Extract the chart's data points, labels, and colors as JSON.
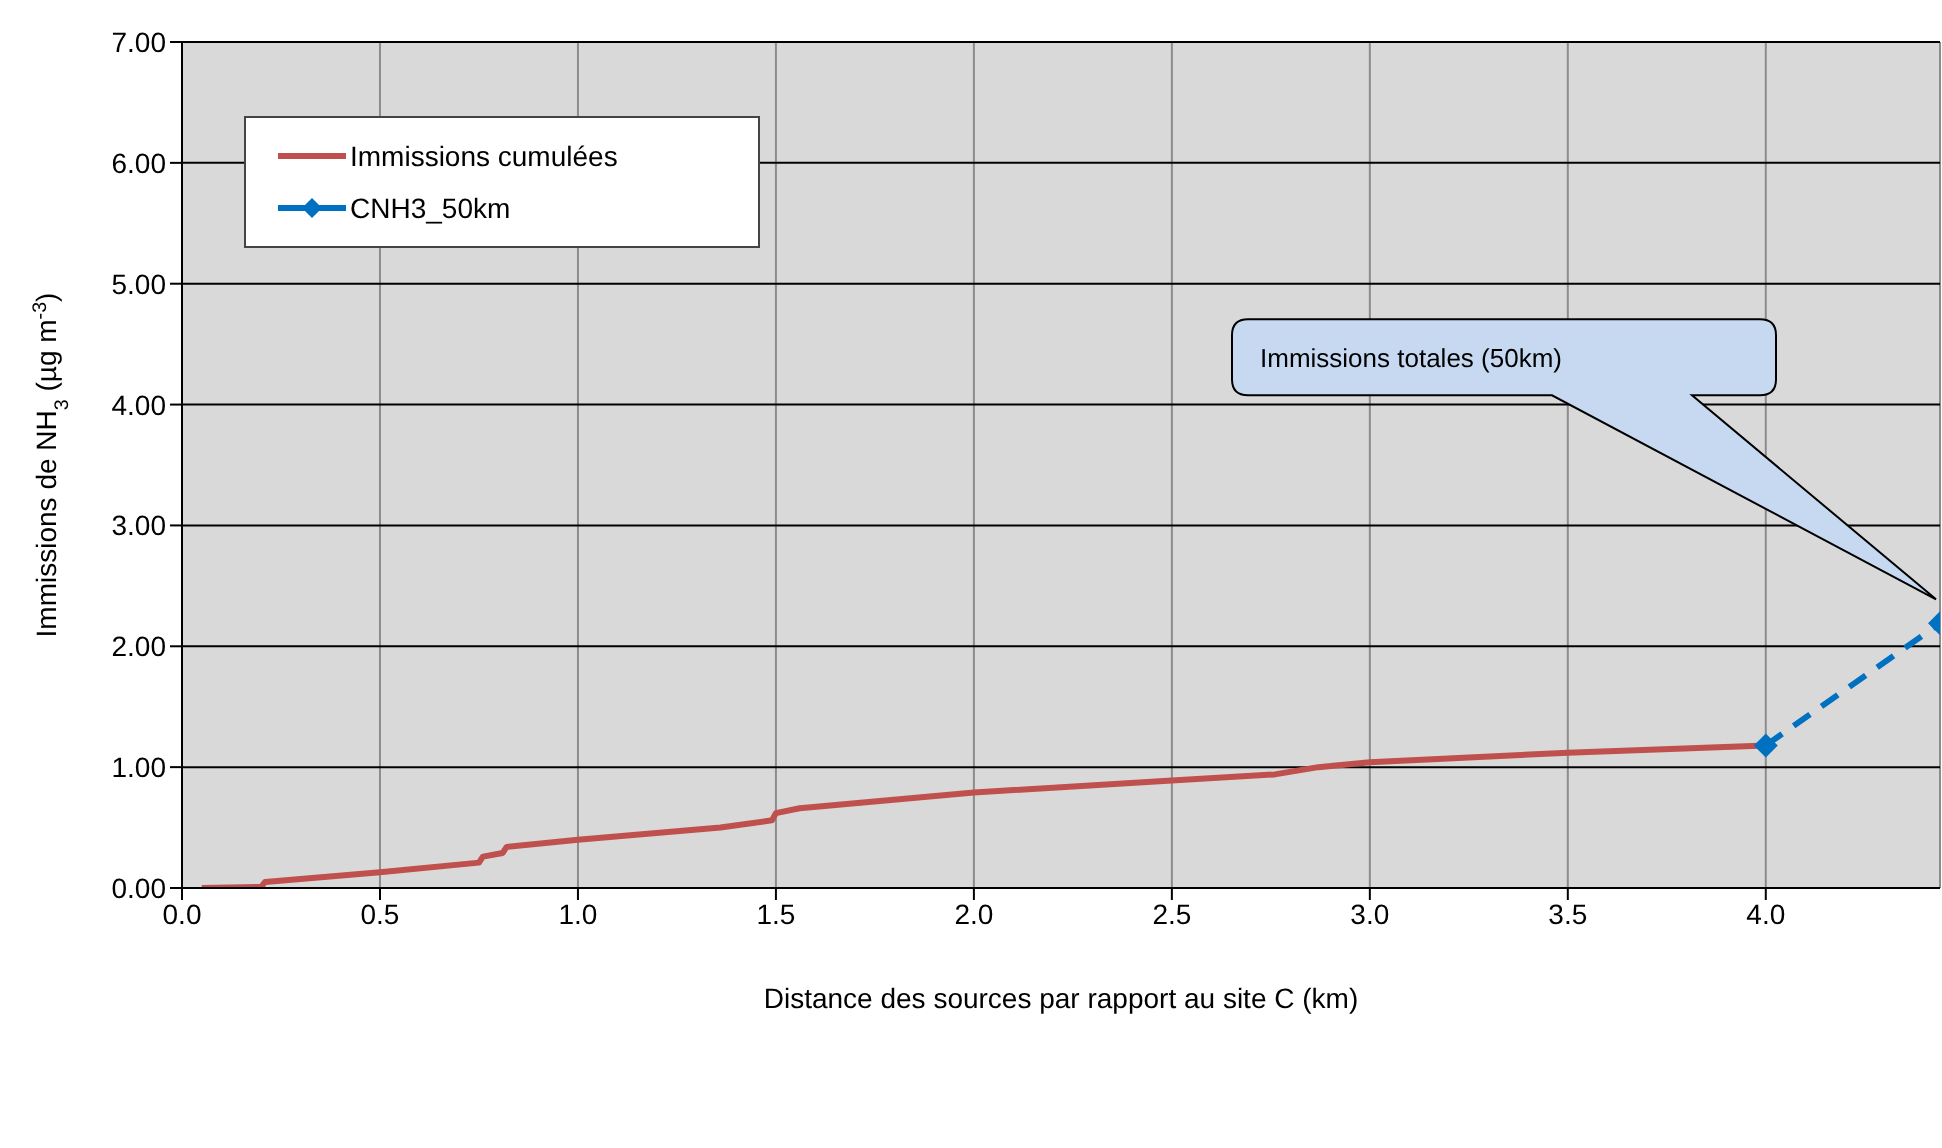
{
  "chart_data": {
    "type": "line",
    "xlabel": "Distance des sources par rapport au site C (km)",
    "ylabel": "Immissions de NH$_{3}$ (µg m$^{-3}$)",
    "xlim": [
      0,
      4.44
    ],
    "xticks": [
      {
        "value": 0,
        "label": "0.0"
      },
      {
        "value": 0.5,
        "label": "0.5"
      },
      {
        "value": 1,
        "label": "1.0"
      },
      {
        "value": 1.5,
        "label": "1.5"
      },
      {
        "value": 2,
        "label": "2.0"
      },
      {
        "value": 2.5,
        "label": "2.5"
      },
      {
        "value": 3,
        "label": "3.0"
      },
      {
        "value": 3.5,
        "label": "3.5"
      },
      {
        "value": 4,
        "label": "4.0"
      }
    ],
    "ylim": [
      0,
      7
    ],
    "yticks": [
      {
        "value": 0,
        "label": "0.00"
      },
      {
        "value": 1,
        "label": "1.00"
      },
      {
        "value": 2,
        "label": "2.00"
      },
      {
        "value": 3,
        "label": "3.00"
      },
      {
        "value": 4,
        "label": "4.00"
      },
      {
        "value": 5,
        "label": "5.00"
      },
      {
        "value": 6,
        "label": "6.00"
      },
      {
        "value": 7,
        "label": "7.00"
      }
    ],
    "grid": true,
    "legend": "top left",
    "series": [
      {
        "name": "Immissions cumulées",
        "color": "#c0504d",
        "marker": "none",
        "line_style": "solid",
        "x": [
          0.05,
          0.2,
          0.21,
          0.5,
          0.75,
          0.76,
          0.81,
          0.82,
          1.0,
          1.36,
          1.49,
          1.5,
          1.56,
          2.0,
          2.5,
          2.76,
          2.87,
          3.0,
          3.5,
          4.0
        ],
        "values": [
          0,
          0.01,
          0.05,
          0.13,
          0.21,
          0.26,
          0.29,
          0.34,
          0.4,
          0.5,
          0.56,
          0.62,
          0.66,
          0.79,
          0.89,
          0.94,
          1.0,
          1.04,
          1.12,
          1.18
        ]
      },
      {
        "name": "CNH3_50km",
        "color": "#0070c0",
        "marker": "diamond",
        "line_style": "dashed",
        "x": [
          4.0,
          4.44
        ],
        "values": [
          1.18,
          2.19
        ]
      }
    ],
    "annotations": [
      "Immissions totales (50km)"
    ]
  }
}
